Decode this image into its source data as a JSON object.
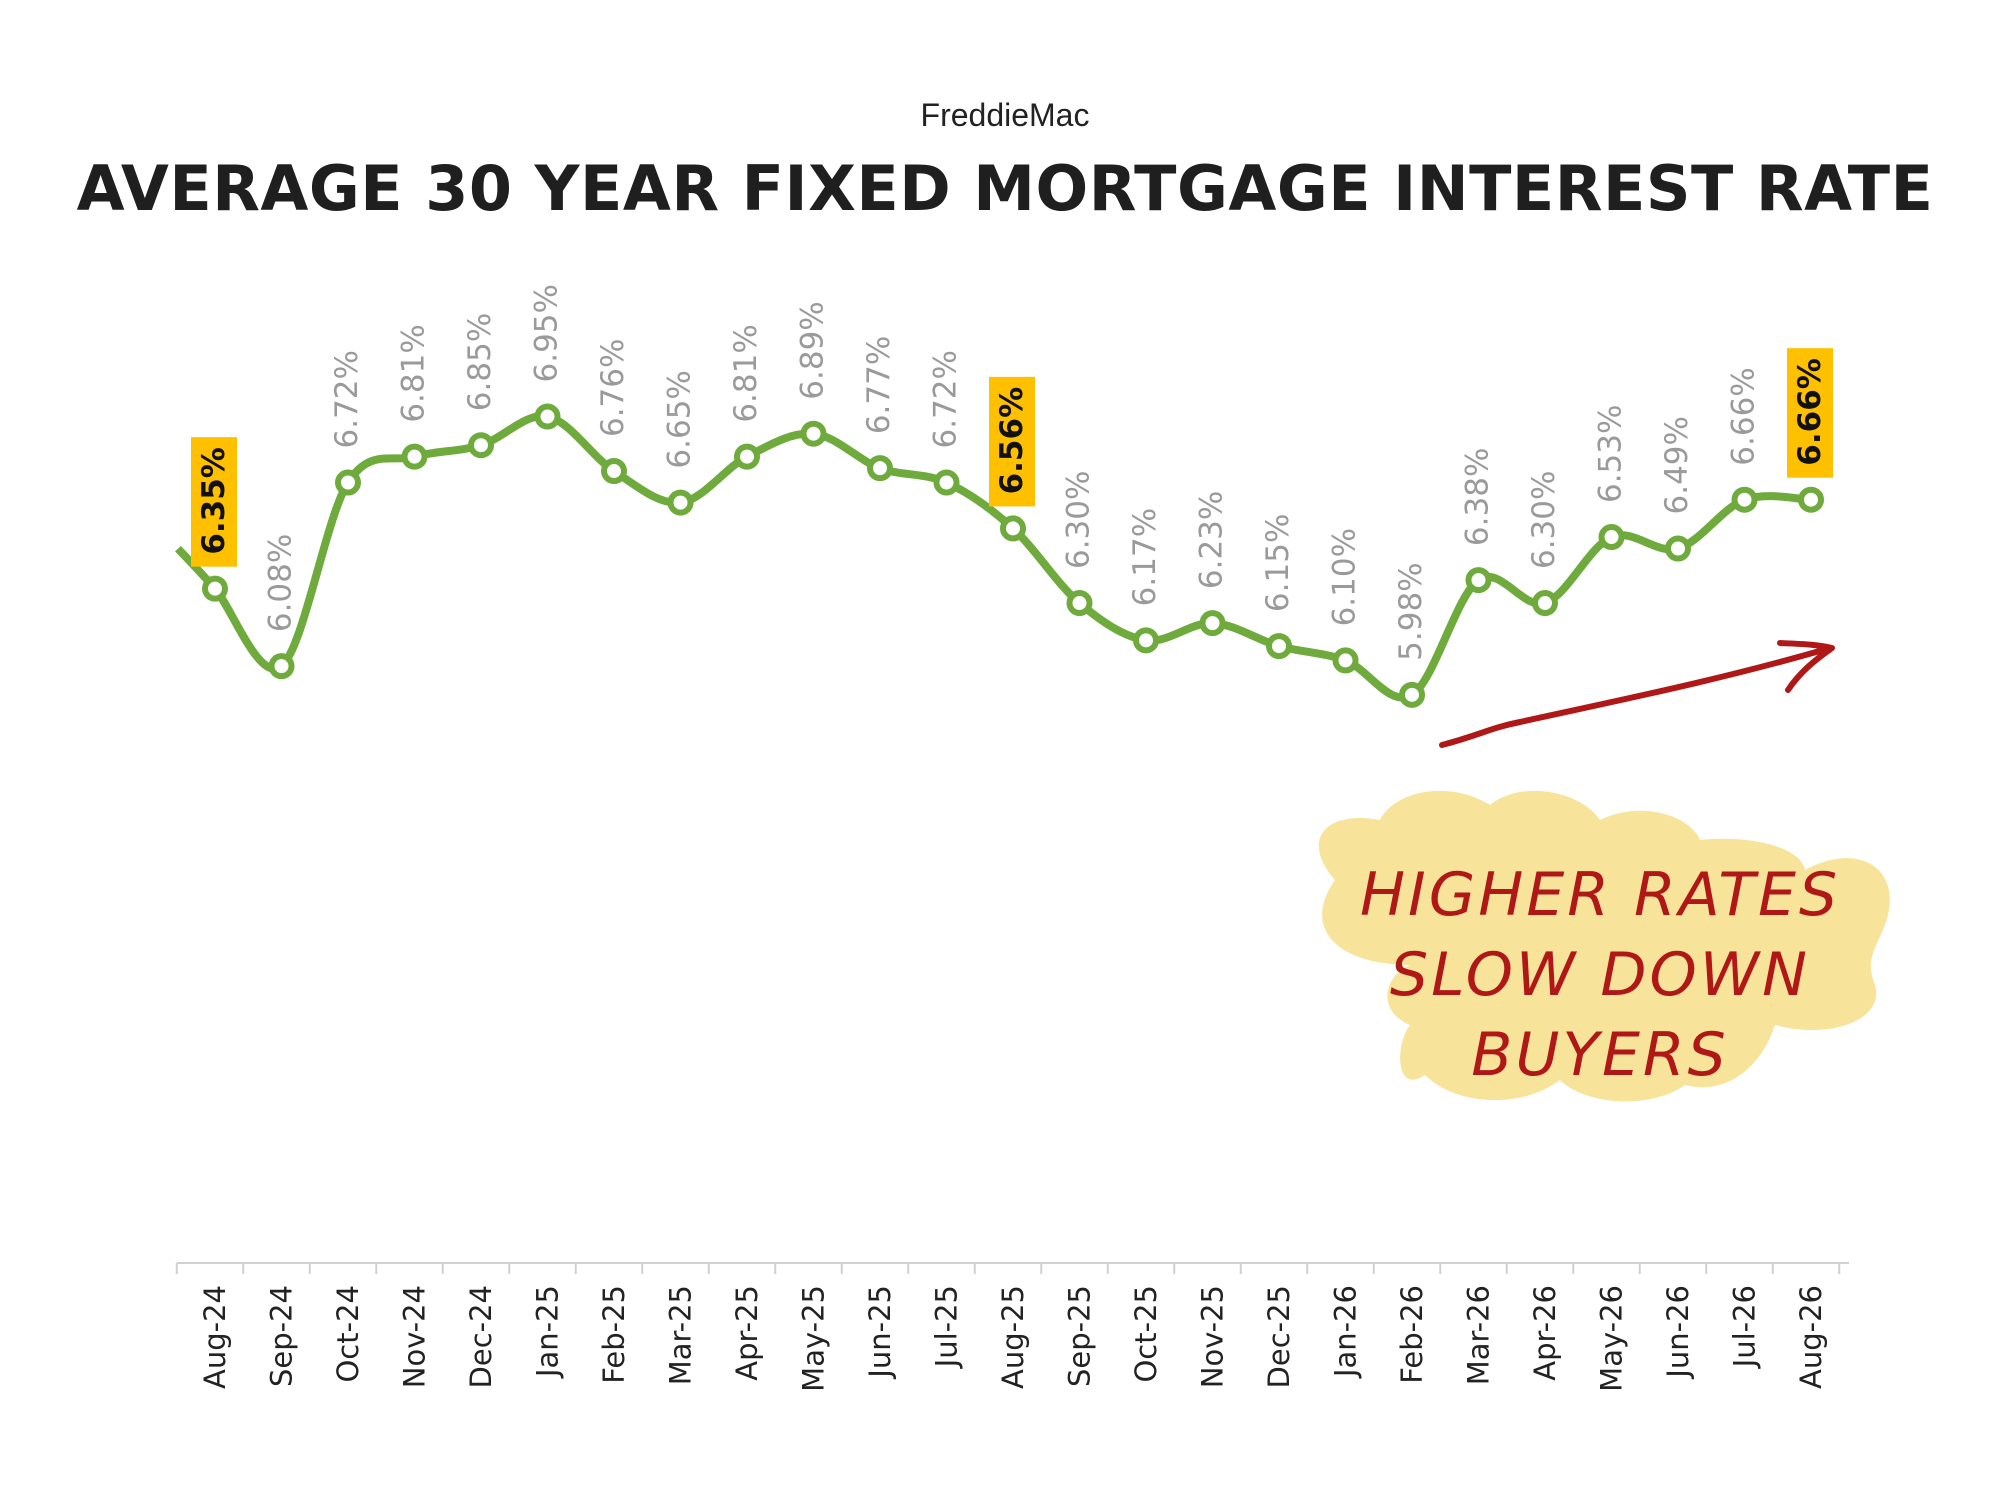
{
  "chart_data": {
    "type": "line",
    "subtitle": "FreddieMac",
    "title": "AVERAGE 30 YEAR FIXED MORTGAGE INTEREST RATE",
    "xlabel": "",
    "ylabel": "",
    "ylim": [
      4.0,
      7.6
    ],
    "grid": false,
    "legend": "none",
    "categories": [
      "Aug-24",
      "Sep-24",
      "Oct-24",
      "Nov-24",
      "Dec-24",
      "Jan-25",
      "Feb-25",
      "Mar-25",
      "Apr-25",
      "May-25",
      "Jun-25",
      "Jul-25",
      "Aug-25",
      "Sep-25",
      "Oct-25",
      "Nov-25",
      "Dec-25",
      "Jan-26",
      "Feb-26",
      "Mar-26",
      "Apr-26",
      "May-26",
      "Jun-26",
      "Jul-26",
      "Aug-26"
    ],
    "series": [
      {
        "values": [
          6.35,
          6.08,
          6.72,
          6.81,
          6.85,
          6.95,
          6.76,
          6.65,
          6.81,
          6.89,
          6.77,
          6.72,
          6.56,
          6.3,
          6.17,
          6.23,
          6.15,
          6.1,
          5.98,
          6.38,
          6.3,
          6.53,
          6.49,
          6.66,
          6.66
        ],
        "labels": [
          "6.35%",
          "6.08%",
          "6.72%",
          "6.81%",
          "6.85%",
          "6.95%",
          "6.76%",
          "6.65%",
          "6.81%",
          "6.89%",
          "6.77%",
          "6.72%",
          "6.56%",
          "6.30%",
          "6.17%",
          "6.23%",
          "6.15%",
          "6.10%",
          "5.98%",
          "6.38%",
          "6.30%",
          "6.53%",
          "6.49%",
          "6.66%",
          "6.66%"
        ],
        "color": "#6eaa3c"
      }
    ],
    "highlighted_indices": [
      0,
      12,
      24
    ],
    "highlight_color": "#ffc000",
    "label_color": "#9a9a9a",
    "annotation": {
      "lines": [
        "HIGHER RATES",
        "SLOW DOWN",
        "BUYERS"
      ],
      "text_color": "#b01818",
      "bubble_color": "#f8e39a",
      "arrow_color": "#b01818"
    }
  }
}
